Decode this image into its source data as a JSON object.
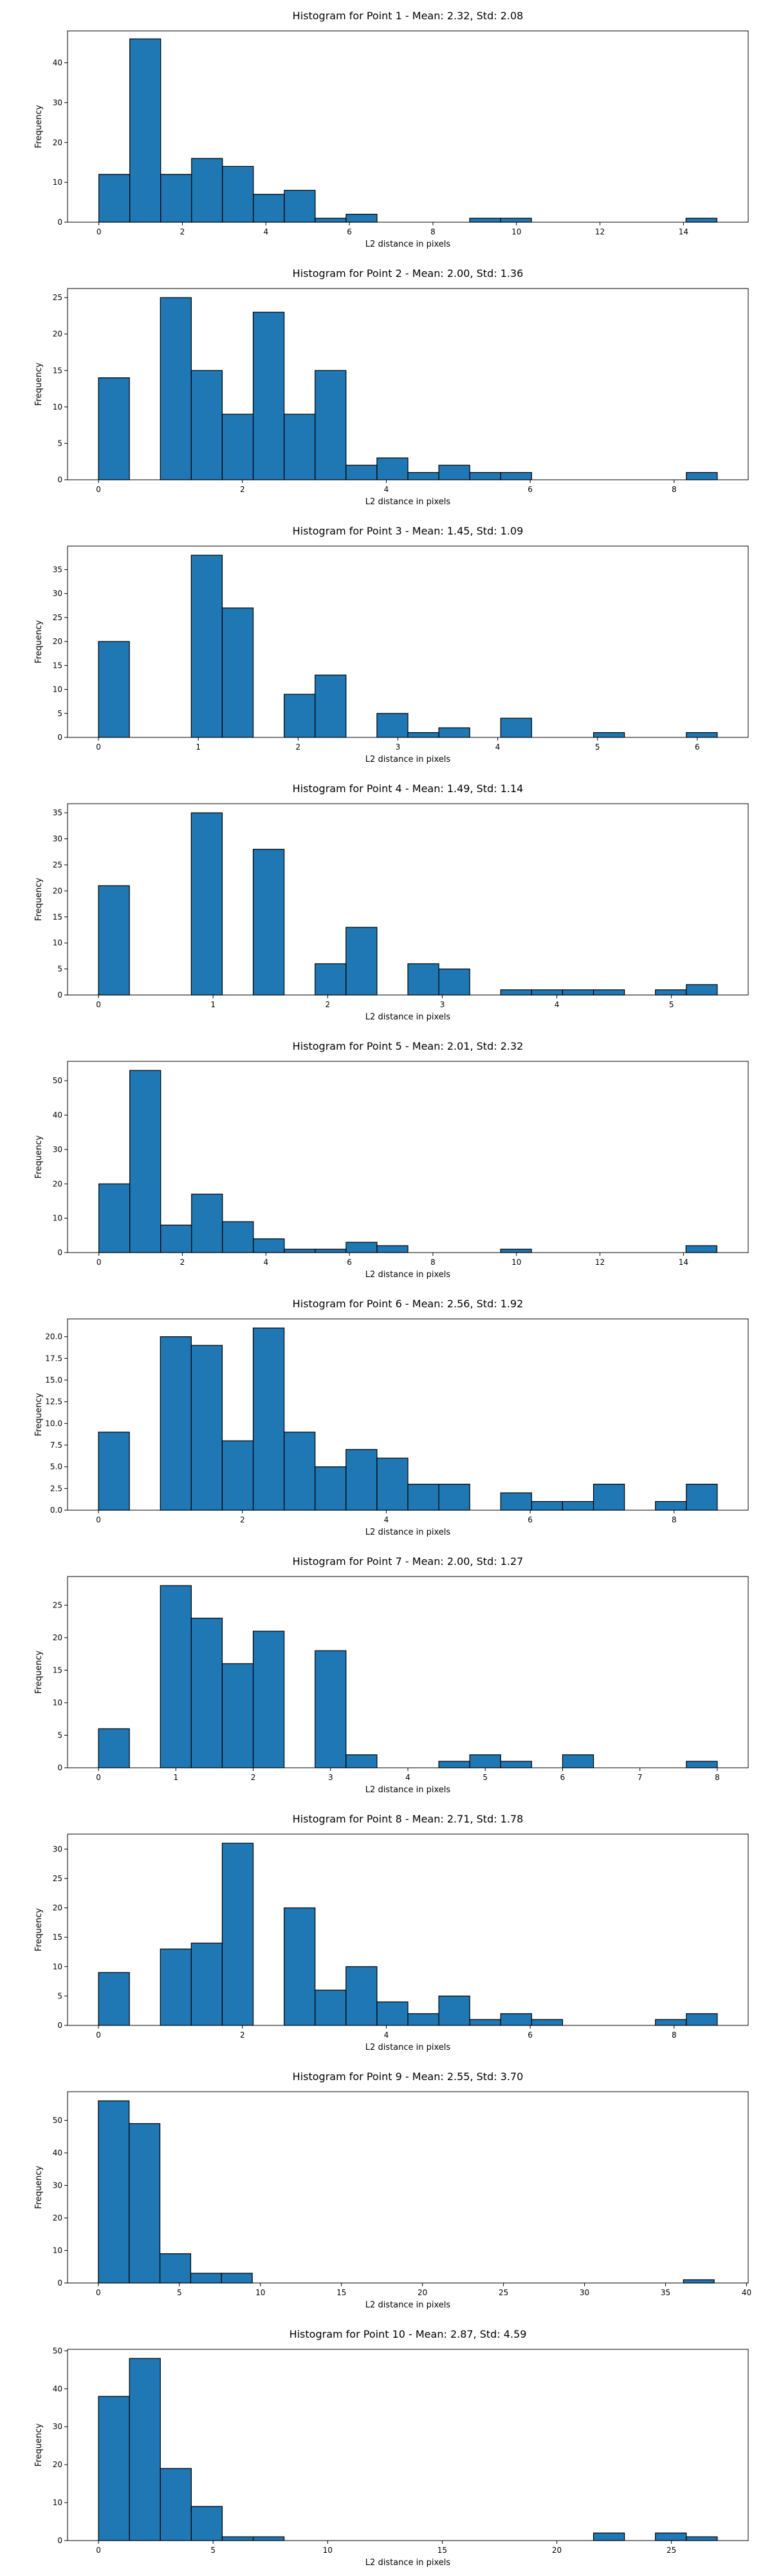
{
  "chart_data": [
    {
      "type": "bar",
      "title": "Histogram for Point 1 - Mean: 2.32, Std: 2.08",
      "xlabel": "L2 distance in pixels",
      "ylabel": "Frequency",
      "xlim": [
        -0.75,
        15.55
      ],
      "ylim": [
        0,
        48
      ],
      "xticks": [
        0,
        2,
        4,
        6,
        8,
        10,
        12,
        14
      ],
      "yticks": [
        0,
        10,
        20,
        30,
        40
      ],
      "bin_start": 0,
      "bin_width": 0.74,
      "values": [
        12,
        46,
        12,
        16,
        14,
        7,
        8,
        1,
        2,
        0,
        0,
        0,
        1,
        1,
        0,
        0,
        0,
        0,
        0,
        1
      ]
    },
    {
      "type": "bar",
      "title": "Histogram for Point 2 - Mean: 2.00, Std: 1.36",
      "xlabel": "L2 distance in pixels",
      "ylabel": "Frequency",
      "xlim": [
        -0.43,
        9.03
      ],
      "ylim": [
        0,
        26.25
      ],
      "xticks": [
        0,
        2,
        4,
        6,
        8
      ],
      "yticks": [
        0,
        5,
        10,
        15,
        20,
        25
      ],
      "bin_start": 0,
      "bin_width": 0.43,
      "values": [
        14,
        0,
        25,
        15,
        9,
        23,
        9,
        15,
        2,
        3,
        1,
        2,
        1,
        1,
        0,
        0,
        0,
        0,
        0,
        1
      ]
    },
    {
      "type": "bar",
      "title": "Histogram for Point 3 - Mean: 1.45, Std: 1.09",
      "xlabel": "L2 distance in pixels",
      "ylabel": "Frequency",
      "xlim": [
        -0.31,
        6.51
      ],
      "ylim": [
        0,
        39.9
      ],
      "xticks": [
        0,
        1,
        2,
        3,
        4,
        5,
        6
      ],
      "yticks": [
        0,
        5,
        10,
        15,
        20,
        25,
        30,
        35
      ],
      "bin_start": 0,
      "bin_width": 0.31,
      "values": [
        20,
        0,
        0,
        38,
        27,
        0,
        9,
        13,
        0,
        5,
        1,
        2,
        0,
        4,
        0,
        0,
        1,
        0,
        0,
        1
      ]
    },
    {
      "type": "bar",
      "title": "Histogram for Point 4 - Mean: 1.49, Std: 1.14",
      "xlabel": "L2 distance in pixels",
      "ylabel": "Frequency",
      "xlim": [
        -0.27,
        5.67
      ],
      "ylim": [
        0,
        36.75
      ],
      "xticks": [
        0,
        1,
        2,
        3,
        4,
        5
      ],
      "yticks": [
        0,
        5,
        10,
        15,
        20,
        25,
        30,
        35
      ],
      "bin_start": 0,
      "bin_width": 0.27,
      "values": [
        21,
        0,
        0,
        35,
        0,
        28,
        0,
        6,
        13,
        0,
        6,
        5,
        0,
        1,
        1,
        1,
        1,
        0,
        1,
        2
      ]
    },
    {
      "type": "bar",
      "title": "Histogram for Point 5 - Mean: 2.01, Std: 2.32",
      "xlabel": "L2 distance in pixels",
      "ylabel": "Frequency",
      "xlim": [
        -0.75,
        15.55
      ],
      "ylim": [
        0,
        55.65
      ],
      "xticks": [
        0,
        2,
        4,
        6,
        8,
        10,
        12,
        14
      ],
      "yticks": [
        0,
        10,
        20,
        30,
        40,
        50
      ],
      "bin_start": 0,
      "bin_width": 0.74,
      "values": [
        20,
        53,
        8,
        17,
        9,
        4,
        1,
        1,
        3,
        2,
        0,
        0,
        0,
        1,
        0,
        0,
        0,
        0,
        0,
        2
      ]
    },
    {
      "type": "bar",
      "title": "Histogram for Point 6 - Mean: 2.56, Std: 1.92",
      "xlabel": "L2 distance in pixels",
      "ylabel": "Frequency",
      "xlim": [
        -0.43,
        9.03
      ],
      "ylim": [
        0,
        22.05
      ],
      "xticks": [
        0,
        2,
        4,
        6,
        8
      ],
      "yticks": [
        0,
        2.5,
        5,
        7.5,
        10,
        12.5,
        15,
        17.5,
        20
      ],
      "ytick_labels": [
        "0.0",
        "2.5",
        "5.0",
        "7.5",
        "10.0",
        "12.5",
        "15.0",
        "17.5",
        "20.0"
      ],
      "bin_start": 0,
      "bin_width": 0.43,
      "values": [
        9,
        0,
        20,
        19,
        8,
        21,
        9,
        5,
        7,
        6,
        3,
        3,
        0,
        2,
        1,
        1,
        3,
        0,
        1,
        3
      ]
    },
    {
      "type": "bar",
      "title": "Histogram for Point 7 - Mean: 2.00, Std: 1.27",
      "xlabel": "L2 distance in pixels",
      "ylabel": "Frequency",
      "xlim": [
        -0.4,
        8.4
      ],
      "ylim": [
        0,
        29.4
      ],
      "xticks": [
        0,
        1,
        2,
        3,
        4,
        5,
        6,
        7,
        8
      ],
      "yticks": [
        0,
        5,
        10,
        15,
        20,
        25
      ],
      "bin_start": 0,
      "bin_width": 0.4,
      "values": [
        6,
        0,
        28,
        23,
        16,
        21,
        0,
        18,
        2,
        0,
        0,
        1,
        2,
        1,
        0,
        2,
        0,
        0,
        0,
        1
      ]
    },
    {
      "type": "bar",
      "title": "Histogram for Point 8 - Mean: 2.71, Std: 1.78",
      "xlabel": "L2 distance in pixels",
      "ylabel": "Frequency",
      "xlim": [
        -0.43,
        9.03
      ],
      "ylim": [
        0,
        32.55
      ],
      "xticks": [
        0,
        2,
        4,
        6,
        8
      ],
      "yticks": [
        0,
        5,
        10,
        15,
        20,
        25,
        30
      ],
      "bin_start": 0,
      "bin_width": 0.43,
      "values": [
        9,
        0,
        13,
        14,
        31,
        0,
        20,
        6,
        10,
        4,
        2,
        5,
        1,
        2,
        1,
        0,
        0,
        0,
        1,
        2
      ]
    },
    {
      "type": "bar",
      "title": "Histogram for Point 9 - Mean: 2.55, Std: 3.70",
      "xlabel": "L2 distance in pixels",
      "ylabel": "Frequency",
      "xlim": [
        -1.9,
        40.1
      ],
      "ylim": [
        0,
        58.8
      ],
      "xticks": [
        0,
        5,
        10,
        15,
        20,
        25,
        30,
        35,
        40
      ],
      "yticks": [
        0,
        10,
        20,
        30,
        40,
        50
      ],
      "bin_start": 0,
      "bin_width": 1.9,
      "values": [
        56,
        49,
        9,
        3,
        3,
        0,
        0,
        0,
        0,
        0,
        0,
        0,
        0,
        0,
        0,
        0,
        0,
        0,
        0,
        1
      ]
    },
    {
      "type": "bar",
      "title": "Histogram for Point 10 - Mean: 2.87, Std: 4.59",
      "xlabel": "L2 distance in pixels",
      "ylabel": "Frequency",
      "xlim": [
        -1.35,
        28.35
      ],
      "ylim": [
        0,
        50.4
      ],
      "xticks": [
        0,
        5,
        10,
        15,
        20,
        25
      ],
      "yticks": [
        0,
        10,
        20,
        30,
        40,
        50
      ],
      "bin_start": 0,
      "bin_width": 1.35,
      "values": [
        38,
        48,
        19,
        9,
        1,
        1,
        0,
        0,
        0,
        0,
        0,
        0,
        0,
        0,
        0,
        0,
        2,
        0,
        2,
        1
      ]
    }
  ],
  "colors": {
    "bar_fill": "#1f77b4",
    "bar_edge": "#000000",
    "axis": "#000000",
    "background": "#ffffff"
  }
}
